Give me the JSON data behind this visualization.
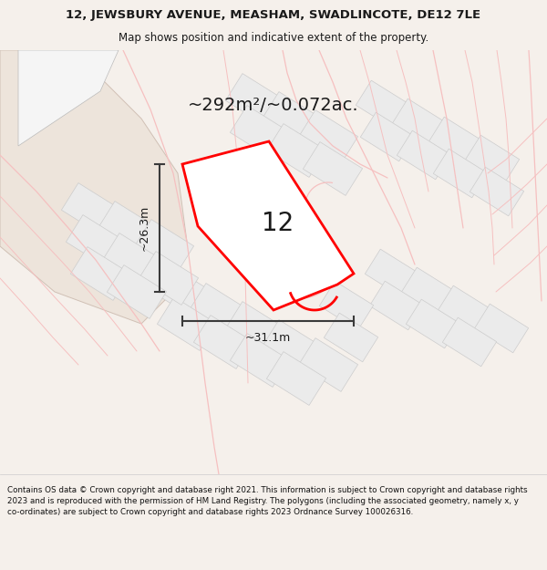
{
  "title_line1": "12, JEWSBURY AVENUE, MEASHAM, SWADLINCOTE, DE12 7LE",
  "title_line2": "Map shows position and indicative extent of the property.",
  "area_text": "~292m²/~0.072ac.",
  "number_label": "12",
  "dim_width": "~31.1m",
  "dim_height": "~26.3m",
  "footer_text": "Contains OS data © Crown copyright and database right 2021. This information is subject to Crown copyright and database rights 2023 and is reproduced with the permission of HM Land Registry. The polygons (including the associated geometry, namely x, y co-ordinates) are subject to Crown copyright and database rights 2023 Ordnance Survey 100026316.",
  "bg_color": "#f5f0eb",
  "map_bg": "#ffffff",
  "road_color": "#f5c0c0",
  "property_color": "#ff0000",
  "dim_line_color": "#3a3a3a",
  "text_color": "#1a1a1a",
  "beige_color": "#ede4db",
  "gray_plot_fill": "#ebebeb",
  "gray_plot_edge": "#cccccc",
  "title_fontsize": 9.5,
  "subtitle_fontsize": 8.5,
  "area_fontsize": 14,
  "number_fontsize": 20,
  "dim_fontsize": 9,
  "footer_fontsize": 6.3
}
